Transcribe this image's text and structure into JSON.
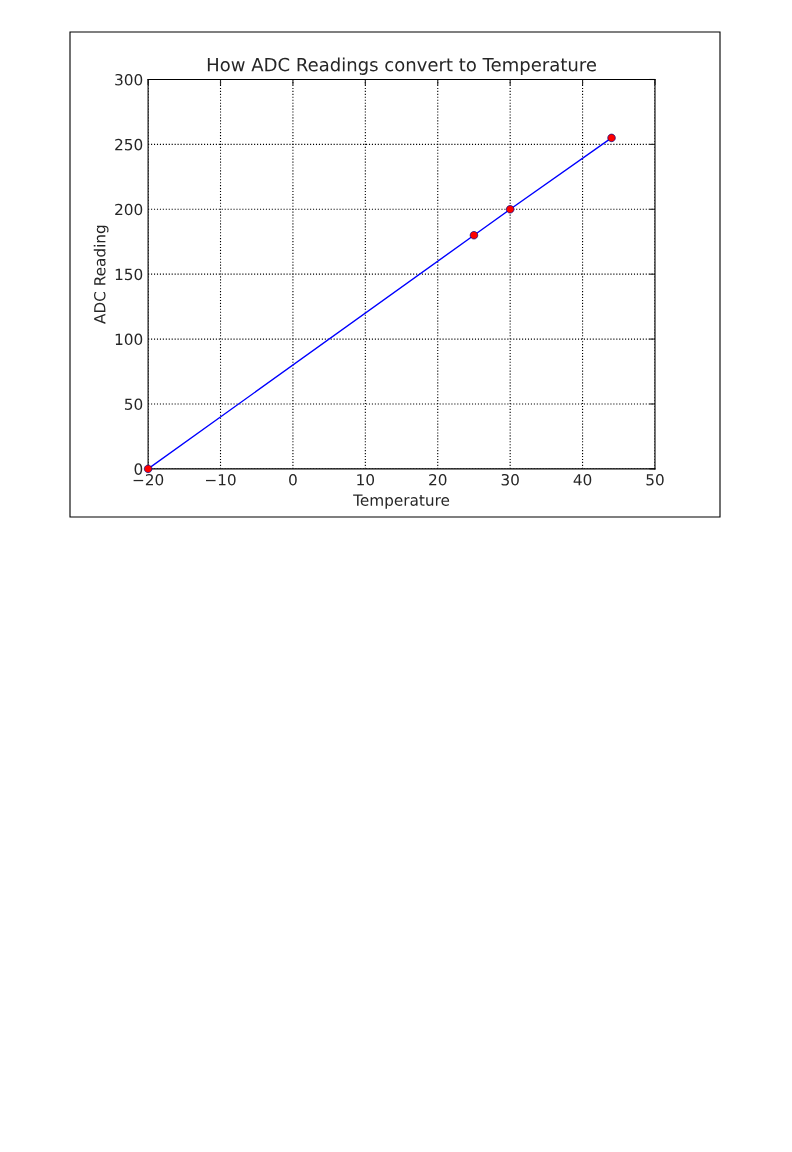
{
  "chart_data": {
    "type": "line",
    "title": "How ADC Readings convert to Temperature",
    "xlabel": "Temperature",
    "ylabel": "ADC Reading",
    "series": [
      {
        "color": "#0000ff",
        "x": [
          -20,
          25,
          30,
          44
        ],
        "values": [
          0,
          180,
          200,
          255
        ],
        "marker": "none"
      },
      {
        "type": "scatter",
        "color": "#ff0000",
        "x": [
          -20,
          25,
          30,
          44
        ],
        "values": [
          0,
          180,
          200,
          255
        ],
        "marker": "circle"
      }
    ],
    "xlim": [
      -20,
      50
    ],
    "xticks": [
      -20,
      -10,
      0,
      10,
      20,
      30,
      40,
      50
    ],
    "ylim": [
      0,
      300
    ],
    "yticks": [
      0,
      50,
      100,
      150,
      200,
      250,
      300
    ],
    "grid": true,
    "legend": false
  }
}
